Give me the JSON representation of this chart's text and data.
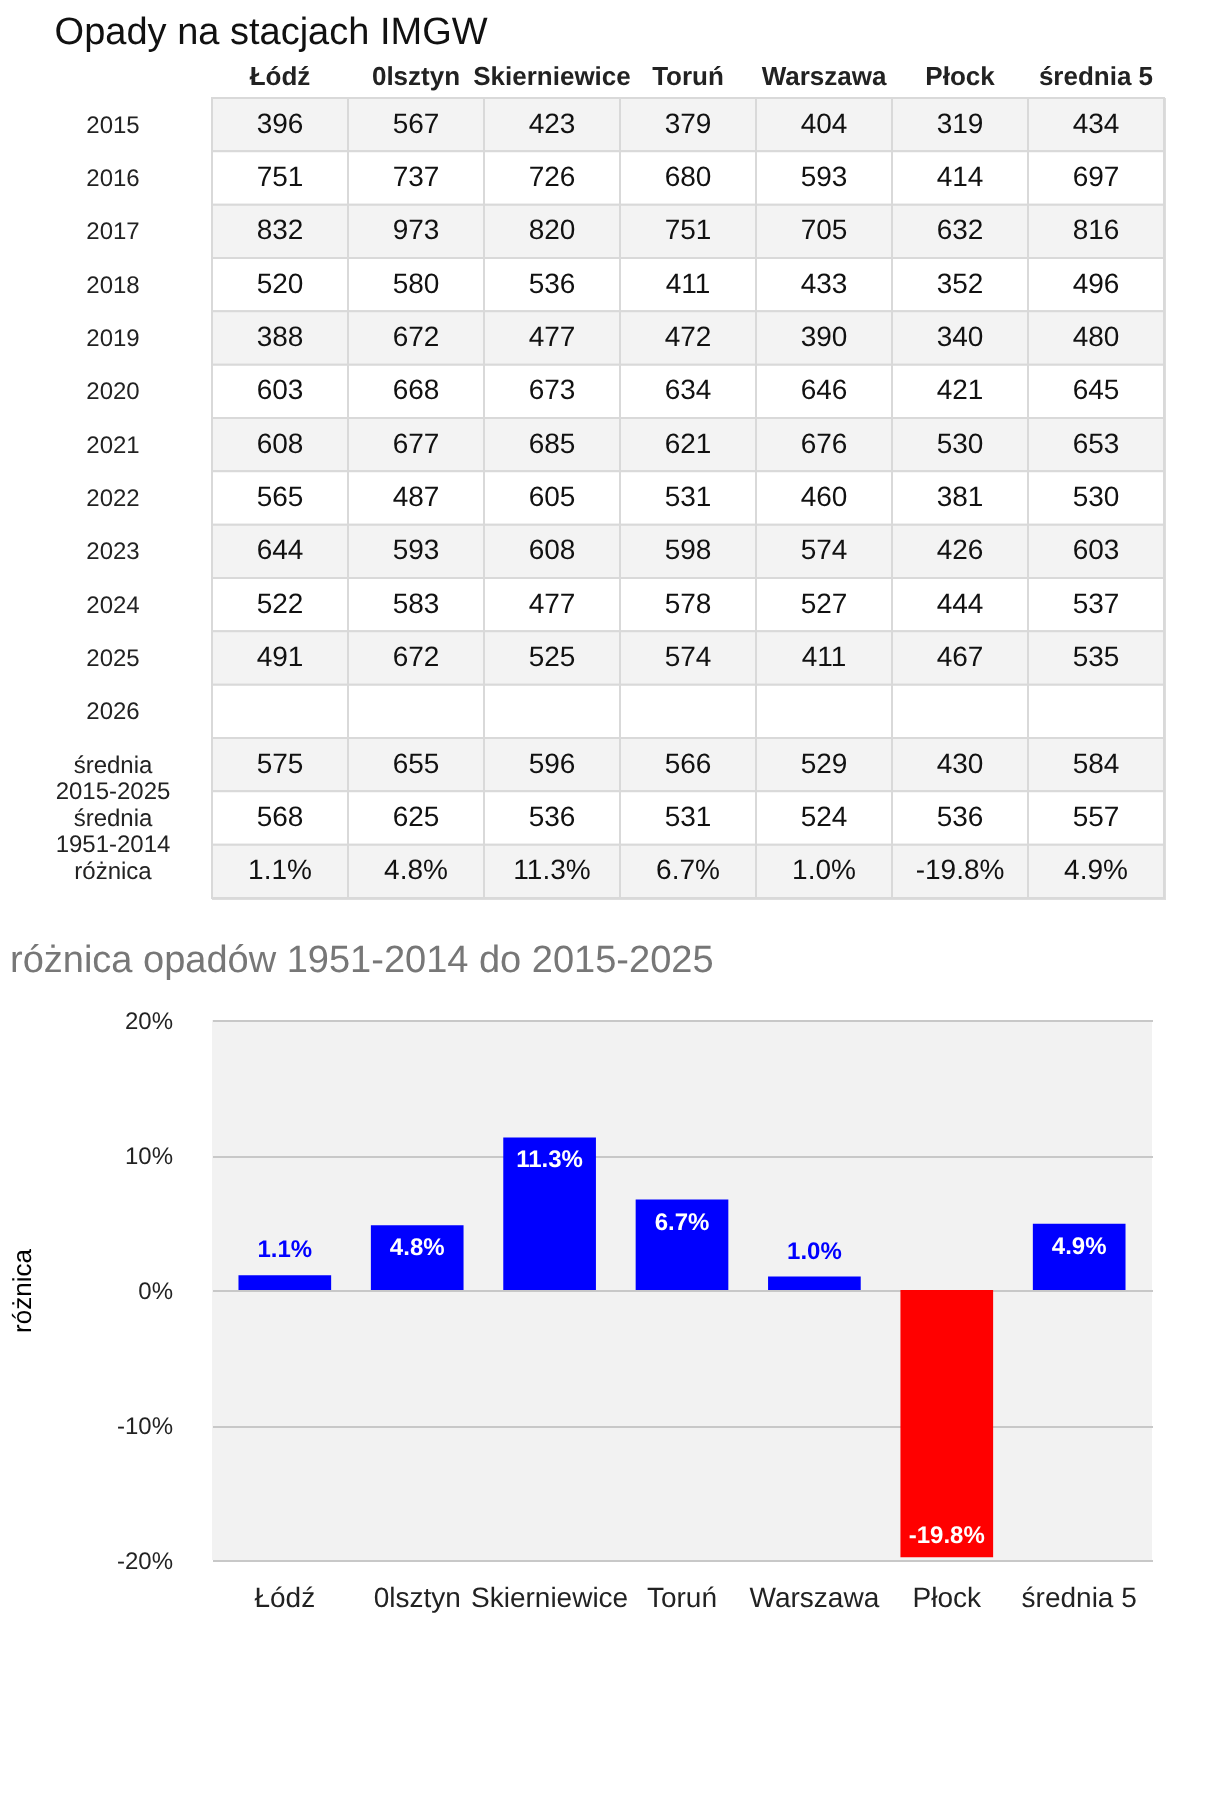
{
  "chart_data": [
    {
      "type": "heatmap",
      "title": "Opady na stacjach IMGW",
      "categories": [
        "Łódź",
        "0lsztyn",
        "Skierniewice",
        "Toruń",
        "Warszawa",
        "Płock",
        "średnia 5"
      ],
      "y_categories": [
        "2015",
        "2016",
        "2017",
        "2018",
        "2019",
        "2020",
        "2021",
        "2022",
        "2023",
        "2024",
        "2025",
        "2026",
        "średnia 2015-2025",
        "średnia 1951-2014",
        "różnica"
      ],
      "cells": [
        [
          396,
          567,
          423,
          379,
          404,
          319,
          434
        ],
        [
          751,
          737,
          726,
          680,
          593,
          414,
          697
        ],
        [
          832,
          973,
          820,
          751,
          705,
          632,
          816
        ],
        [
          520,
          580,
          536,
          411,
          433,
          352,
          496
        ],
        [
          388,
          672,
          477,
          472,
          390,
          340,
          480
        ],
        [
          603,
          668,
          673,
          634,
          646,
          421,
          645
        ],
        [
          608,
          677,
          685,
          621,
          676,
          530,
          653
        ],
        [
          565,
          487,
          605,
          531,
          460,
          381,
          530
        ],
        [
          644,
          593,
          608,
          598,
          574,
          426,
          603
        ],
        [
          522,
          583,
          477,
          578,
          527,
          444,
          537
        ],
        [
          491,
          672,
          525,
          574,
          411,
          467,
          535
        ],
        [
          null,
          null,
          null,
          null,
          null,
          null,
          null
        ],
        [
          575,
          655,
          596,
          566,
          529,
          430,
          584
        ],
        [
          568,
          625,
          536,
          531,
          524,
          536,
          557
        ],
        [
          1.1,
          4.8,
          11.3,
          6.7,
          1.0,
          -19.8,
          4.9
        ]
      ],
      "cell_labels": [
        [
          "396",
          "567",
          "423",
          "379",
          "404",
          "319",
          "434"
        ],
        [
          "751",
          "737",
          "726",
          "680",
          "593",
          "414",
          "697"
        ],
        [
          "832",
          "973",
          "820",
          "751",
          "705",
          "632",
          "816"
        ],
        [
          "520",
          "580",
          "536",
          "411",
          "433",
          "352",
          "496"
        ],
        [
          "388",
          "672",
          "477",
          "472",
          "390",
          "340",
          "480"
        ],
        [
          "603",
          "668",
          "673",
          "634",
          "646",
          "421",
          "645"
        ],
        [
          "608",
          "677",
          "685",
          "621",
          "676",
          "530",
          "653"
        ],
        [
          "565",
          "487",
          "605",
          "531",
          "460",
          "381",
          "530"
        ],
        [
          "644",
          "593",
          "608",
          "598",
          "574",
          "426",
          "603"
        ],
        [
          "522",
          "583",
          "477",
          "578",
          "527",
          "444",
          "537"
        ],
        [
          "491",
          "672",
          "525",
          "574",
          "411",
          "467",
          "535"
        ],
        [
          null,
          null,
          null,
          null,
          null,
          null,
          null
        ],
        [
          "575",
          "655",
          "596",
          "566",
          "529",
          "430",
          "584"
        ],
        [
          "568",
          "625",
          "536",
          "531",
          "524",
          "536",
          "557"
        ],
        [
          "1.1%",
          "4.8%",
          "11.3%",
          "6.7%",
          "1.0%",
          "-19.8%",
          "4.9%"
        ]
      ]
    },
    {
      "type": "bar",
      "title": "różnica opadów 1951-2014 do 2015-2025",
      "ylabel": "różnica",
      "categories": [
        "Łódź",
        "0lsztyn",
        "Skierniewice",
        "Toruń",
        "Warszawa",
        "Płock",
        "średnia 5"
      ],
      "values": [
        1.1,
        4.8,
        11.3,
        6.7,
        1.0,
        -19.8,
        4.9
      ],
      "colors": [
        "#0000ff",
        "#0000ff",
        "#0000ff",
        "#0000ff",
        "#0000ff",
        "#ff0000",
        "#0000ff"
      ],
      "value_labels": [
        "1.1%",
        "4.8%",
        "11.3%",
        "6.7%",
        "1.0%",
        "-19.8%",
        "4.9%"
      ],
      "ylim": [
        -20,
        20
      ],
      "yticks": [
        {
          "value": -20,
          "label": "-20%"
        },
        {
          "value": -10,
          "label": "-10%"
        },
        {
          "value": 0,
          "label": "0%"
        },
        {
          "value": 10,
          "label": "10%"
        },
        {
          "value": 20,
          "label": "20%"
        }
      ],
      "grid": "y"
    }
  ]
}
